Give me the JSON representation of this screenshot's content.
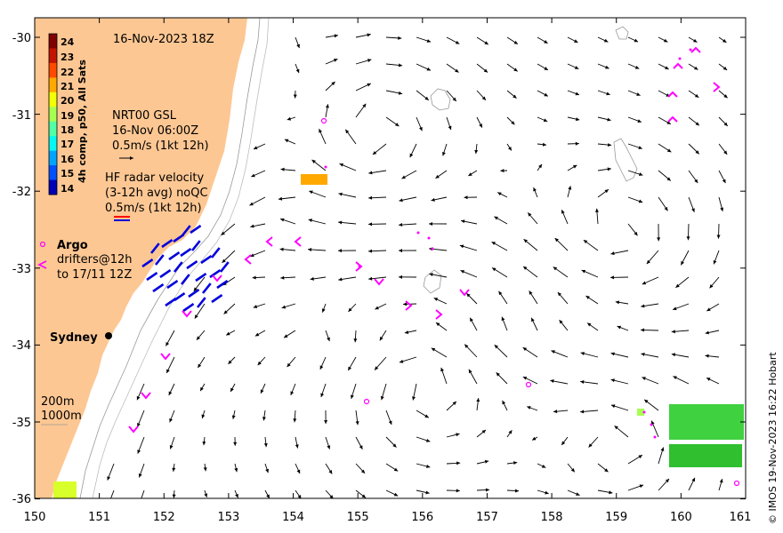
{
  "map": {
    "date_label": "16-Nov-2023 18Z",
    "lon_ticks": [
      "150",
      "151",
      "152",
      "153",
      "154",
      "155",
      "156",
      "157",
      "158",
      "159",
      "160",
      "161"
    ],
    "lat_ticks": [
      "-30",
      "-31",
      "-32",
      "-33",
      "-34",
      "-35",
      "-36"
    ],
    "lon_range": [
      150,
      161
    ],
    "lat_range": [
      -36,
      -29.8
    ],
    "land_color": "#fdc793",
    "grid_note": "current velocity arrow field"
  },
  "colorbar": {
    "title": "4h comp, p50, All Sats",
    "ticks": [
      "24",
      "23",
      "22",
      "21",
      "20",
      "19",
      "18",
      "17",
      "16",
      "15",
      "14"
    ],
    "colors": [
      "#7f0000",
      "#c21400",
      "#ff4a00",
      "#ffa800",
      "#f2ff05",
      "#a6ff51",
      "#51ffa6",
      "#05f8f2",
      "#00a4ff",
      "#0050ff",
      "#0000b6"
    ]
  },
  "legend": {
    "gsl_line1": "NRT00 GSL",
    "gsl_line2": "16-Nov 06:00Z",
    "gsl_line3": "0.5m/s (1kt 12h)",
    "hf_line1": "HF radar velocity",
    "hf_line2": "(3-12h avg) noQC",
    "hf_line3": "0.5m/s (1kt 12h)",
    "argo_label": "Argo",
    "drifters_line1": "drifters@12h",
    "drifters_line2": "to 17/11 12Z",
    "depth_200": "200m",
    "depth_1000": "1000m",
    "city": "Sydney"
  },
  "colors": {
    "argo": "#ff00ff",
    "hf_radar": "#0000dd",
    "hf_red": "#ff0000",
    "vector": "#000000"
  },
  "credit": "© IMOS 19-Nov-2023 16:22 Hobart"
}
